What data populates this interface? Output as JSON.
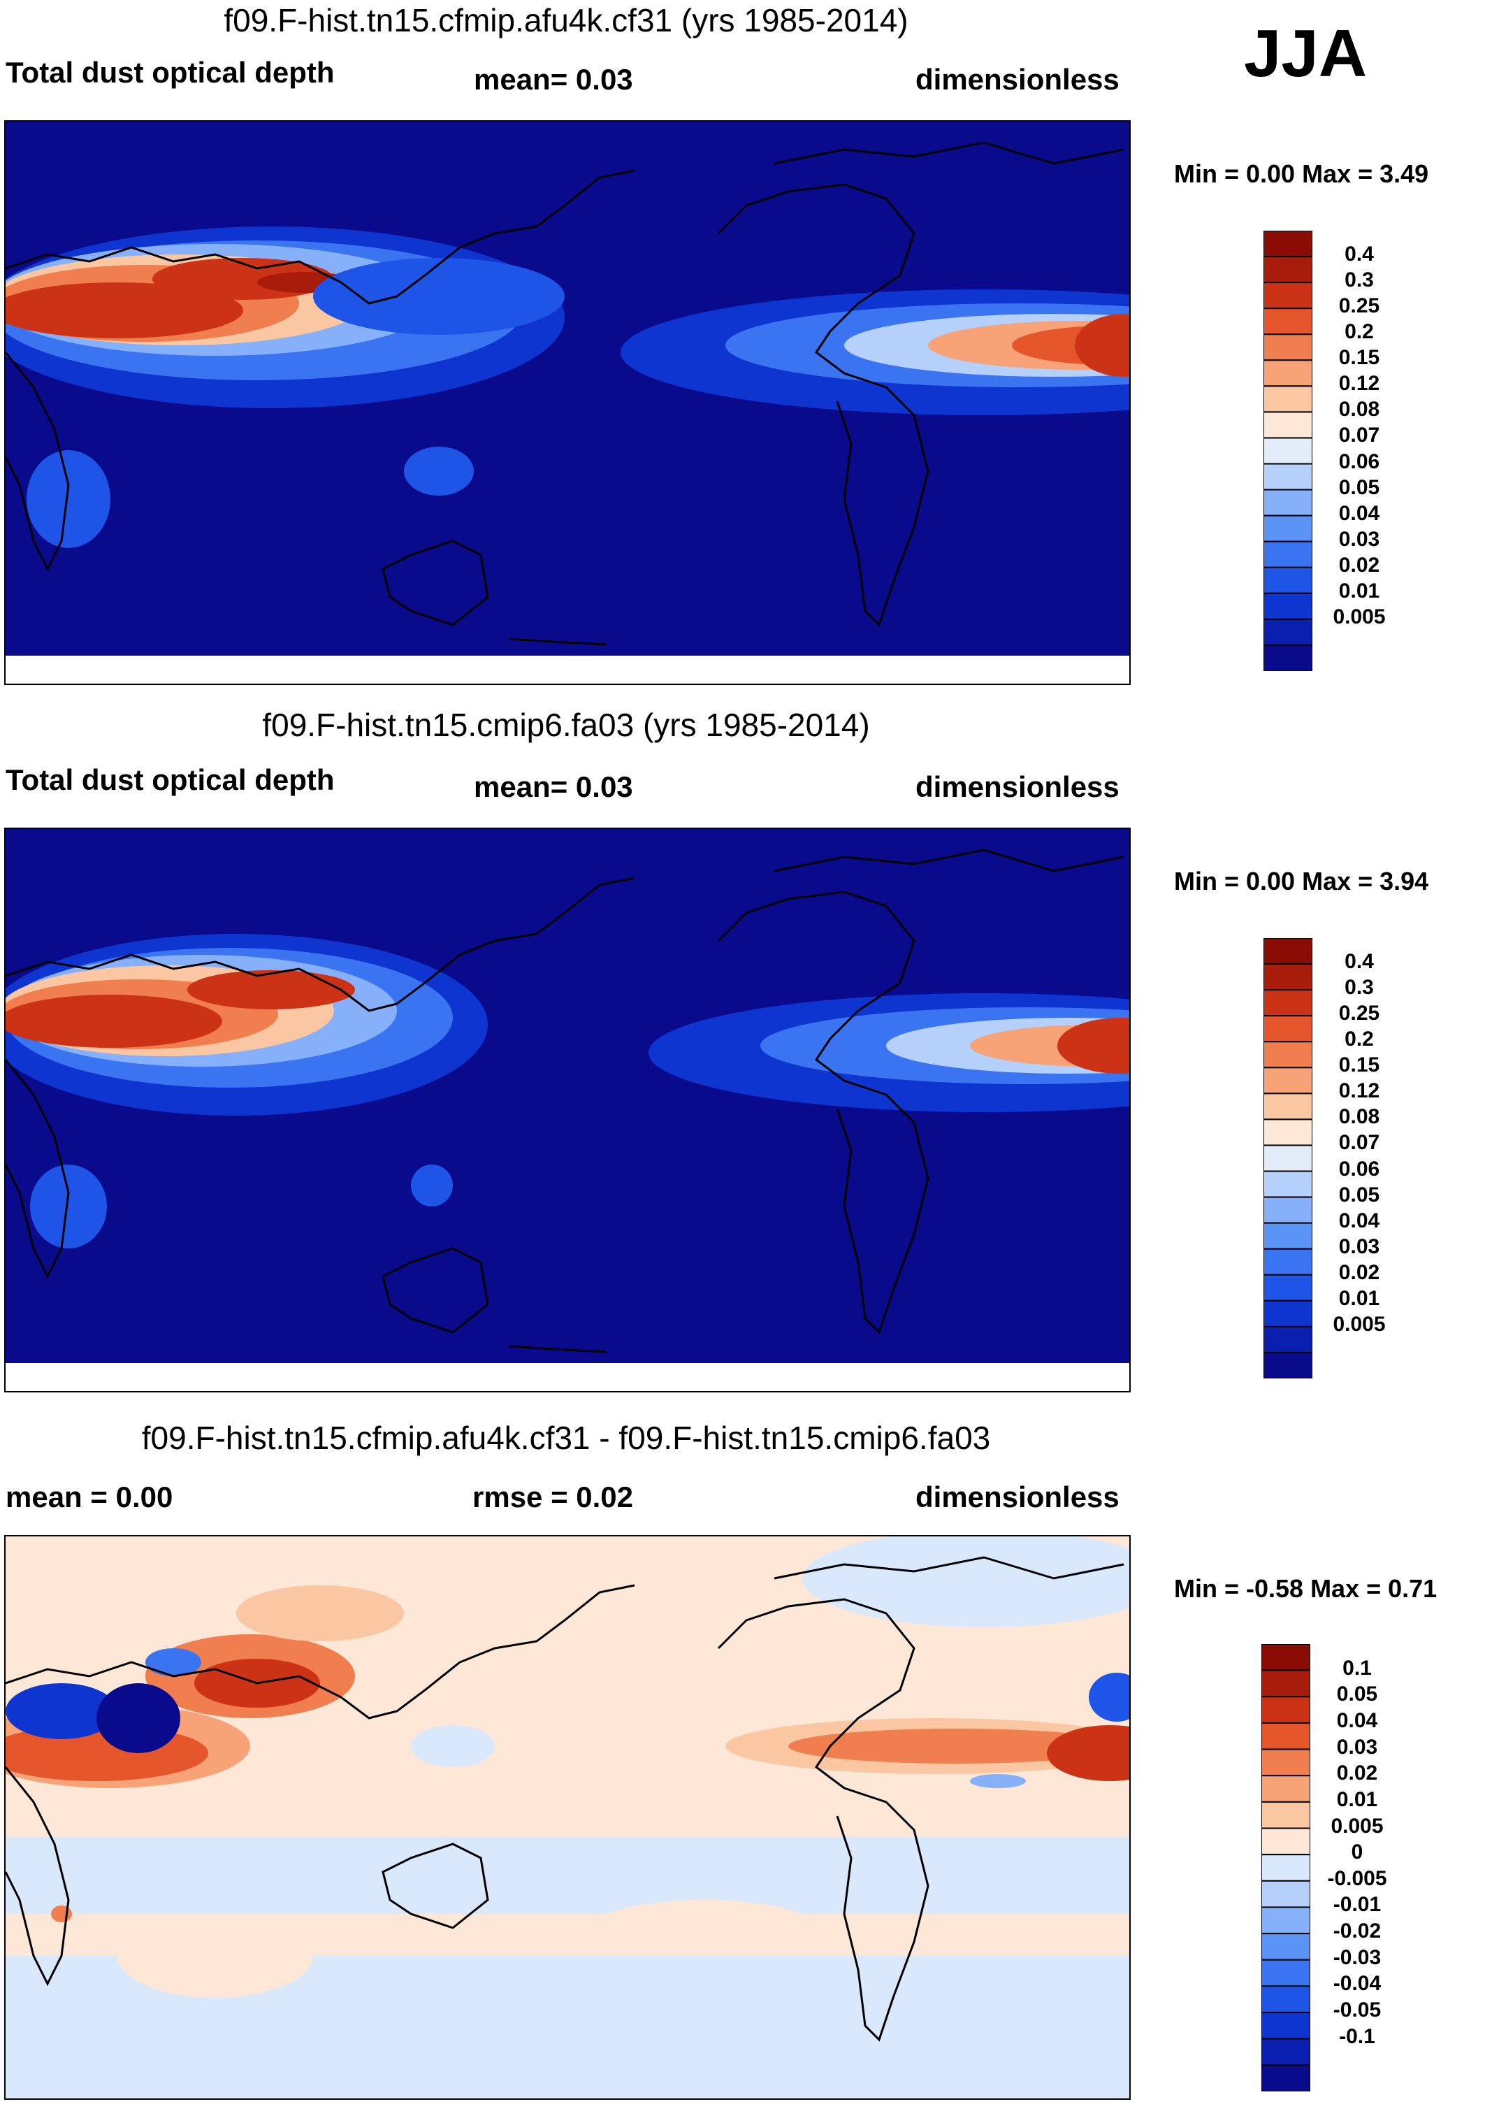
{
  "season": "JJA",
  "panels": [
    {
      "id": "top",
      "title": "f09.F-hist.tn15.cfmip.afu4k.cf31 (yrs 1985-2014)",
      "left_label": "Total dust optical depth",
      "center_label": "mean=   0.03",
      "right_label": "dimensionless",
      "minmax": "Min =   0.00 Max =   3.49",
      "palette": "dust",
      "colorbar": [
        "0.4",
        "0.3",
        "0.25",
        "0.2",
        "0.15",
        "0.12",
        "0.08",
        "0.07",
        "0.06",
        "0.05",
        "0.04",
        "0.03",
        "0.02",
        "0.01",
        "0.005"
      ]
    },
    {
      "id": "middle",
      "title": "f09.F-hist.tn15.cmip6.fa03 (yrs 1985-2014)",
      "left_label": "Total dust optical depth",
      "center_label": "mean=   0.03",
      "right_label": "dimensionless",
      "minmax": "Min =   0.00 Max =   3.94",
      "palette": "dust",
      "colorbar": [
        "0.4",
        "0.3",
        "0.25",
        "0.2",
        "0.15",
        "0.12",
        "0.08",
        "0.07",
        "0.06",
        "0.05",
        "0.04",
        "0.03",
        "0.02",
        "0.01",
        "0.005"
      ]
    },
    {
      "id": "bottom",
      "title": "f09.F-hist.tn15.cfmip.afu4k.cf31 - f09.F-hist.tn15.cmip6.fa03",
      "left_label": "mean =   0.00",
      "center_label": "rmse =   0.02",
      "right_label": "dimensionless",
      "minmax": "Min =  -0.58 Max =   0.71",
      "palette": "diff",
      "colorbar": [
        "0.1",
        "0.05",
        "0.04",
        "0.03",
        "0.02",
        "0.01",
        "0.005",
        "0",
        "-0.005",
        "-0.01",
        "-0.02",
        "-0.03",
        "-0.04",
        "-0.05",
        "-0.1"
      ]
    }
  ],
  "colors": {
    "dust_palette": [
      "#0a0a8c",
      "#0a1fb0",
      "#0f35d0",
      "#1f55e6",
      "#3a74f0",
      "#5c93f6",
      "#86b0fa",
      "#b5d0fb",
      "#e3edfa",
      "#fde7d6",
      "#fbc7a3",
      "#f7a277",
      "#f07e4f",
      "#e6562c",
      "#cc3316",
      "#a81c0b",
      "#8a0c05"
    ],
    "diff_palette": [
      "#0a0a8c",
      "#0a1fb0",
      "#0f35d0",
      "#1f55e6",
      "#3a74f0",
      "#5c93f6",
      "#86b0fa",
      "#b5d0fb",
      "#d9e8fb",
      "#fde7d6",
      "#fbc7a3",
      "#f7a277",
      "#f07e4f",
      "#e6562c",
      "#cc3316",
      "#a81c0b",
      "#8a0c05"
    ]
  }
}
